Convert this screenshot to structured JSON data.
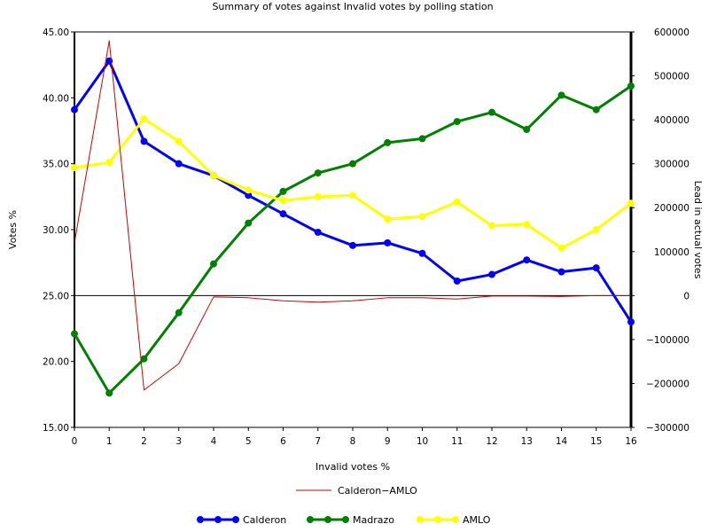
{
  "chart_data": {
    "type": "line",
    "title": "Summary of votes against Invalid votes by polling station",
    "xlabel": "Invalid votes %",
    "ylabel_left": "Votes %",
    "ylabel_right": "Lead in actual votes",
    "x": [
      0,
      1,
      2,
      3,
      4,
      5,
      6,
      7,
      8,
      9,
      10,
      11,
      12,
      13,
      14,
      15,
      16
    ],
    "x_tick_labels": [
      "0",
      "1",
      "2",
      "3",
      "4",
      "5",
      "6",
      "7",
      "8",
      "9",
      "10",
      "11",
      "12",
      "13",
      "14",
      "15",
      "16"
    ],
    "ylim_left": [
      15,
      45
    ],
    "y_left_tick_labels": [
      "15.00",
      "20.00",
      "25.00",
      "30.00",
      "35.00",
      "40.00",
      "45.00"
    ],
    "y_left_ticks": [
      15,
      20,
      25,
      30,
      35,
      40,
      45
    ],
    "ylim_right": [
      -300000,
      600000
    ],
    "y_right_tick_labels": [
      "−300000",
      "−200000",
      "−100000",
      "0",
      "100000",
      "200000",
      "300000",
      "400000",
      "500000",
      "600000"
    ],
    "y_right_ticks": [
      -300000,
      -200000,
      -100000,
      0,
      100000,
      200000,
      300000,
      400000,
      500000,
      600000
    ],
    "series": [
      {
        "name": "Calderon",
        "axis": "left",
        "color": "#0000ff",
        "marker": true,
        "values": [
          39.1,
          42.8,
          36.7,
          35.0,
          34.1,
          32.6,
          31.2,
          29.8,
          28.8,
          29.0,
          28.2,
          26.1,
          26.6,
          27.7,
          26.8,
          27.1,
          23.0
        ]
      },
      {
        "name": "Madrazo",
        "axis": "left",
        "color": "#008000",
        "marker": true,
        "values": [
          22.1,
          17.6,
          20.2,
          23.7,
          27.4,
          30.5,
          32.9,
          34.3,
          35.0,
          36.6,
          36.9,
          38.2,
          38.9,
          37.6,
          40.2,
          39.1,
          40.9
        ]
      },
      {
        "name": "AMLO",
        "axis": "left",
        "color": "#ffff00",
        "marker": true,
        "values": [
          34.7,
          35.1,
          38.4,
          36.7,
          34.1,
          33.0,
          32.2,
          32.5,
          32.6,
          30.8,
          31.0,
          32.1,
          30.3,
          30.4,
          28.6,
          30.0,
          32.0
        ]
      },
      {
        "name": "Calderon−AMLO",
        "axis": "right",
        "color": "#cc0000",
        "marker": false,
        "values": [
          120000,
          580000,
          -215000,
          -155000,
          -3000,
          -5000,
          -12000,
          -15000,
          -12000,
          -5000,
          -5000,
          -8000,
          -1000,
          -1000,
          -2000,
          0,
          0
        ]
      }
    ],
    "legend": {
      "top": [
        "Calderon−AMLO"
      ],
      "bottom": [
        "Calderon",
        "Madrazo",
        "AMLO"
      ]
    },
    "reference_line_right": 0,
    "grid": false
  }
}
